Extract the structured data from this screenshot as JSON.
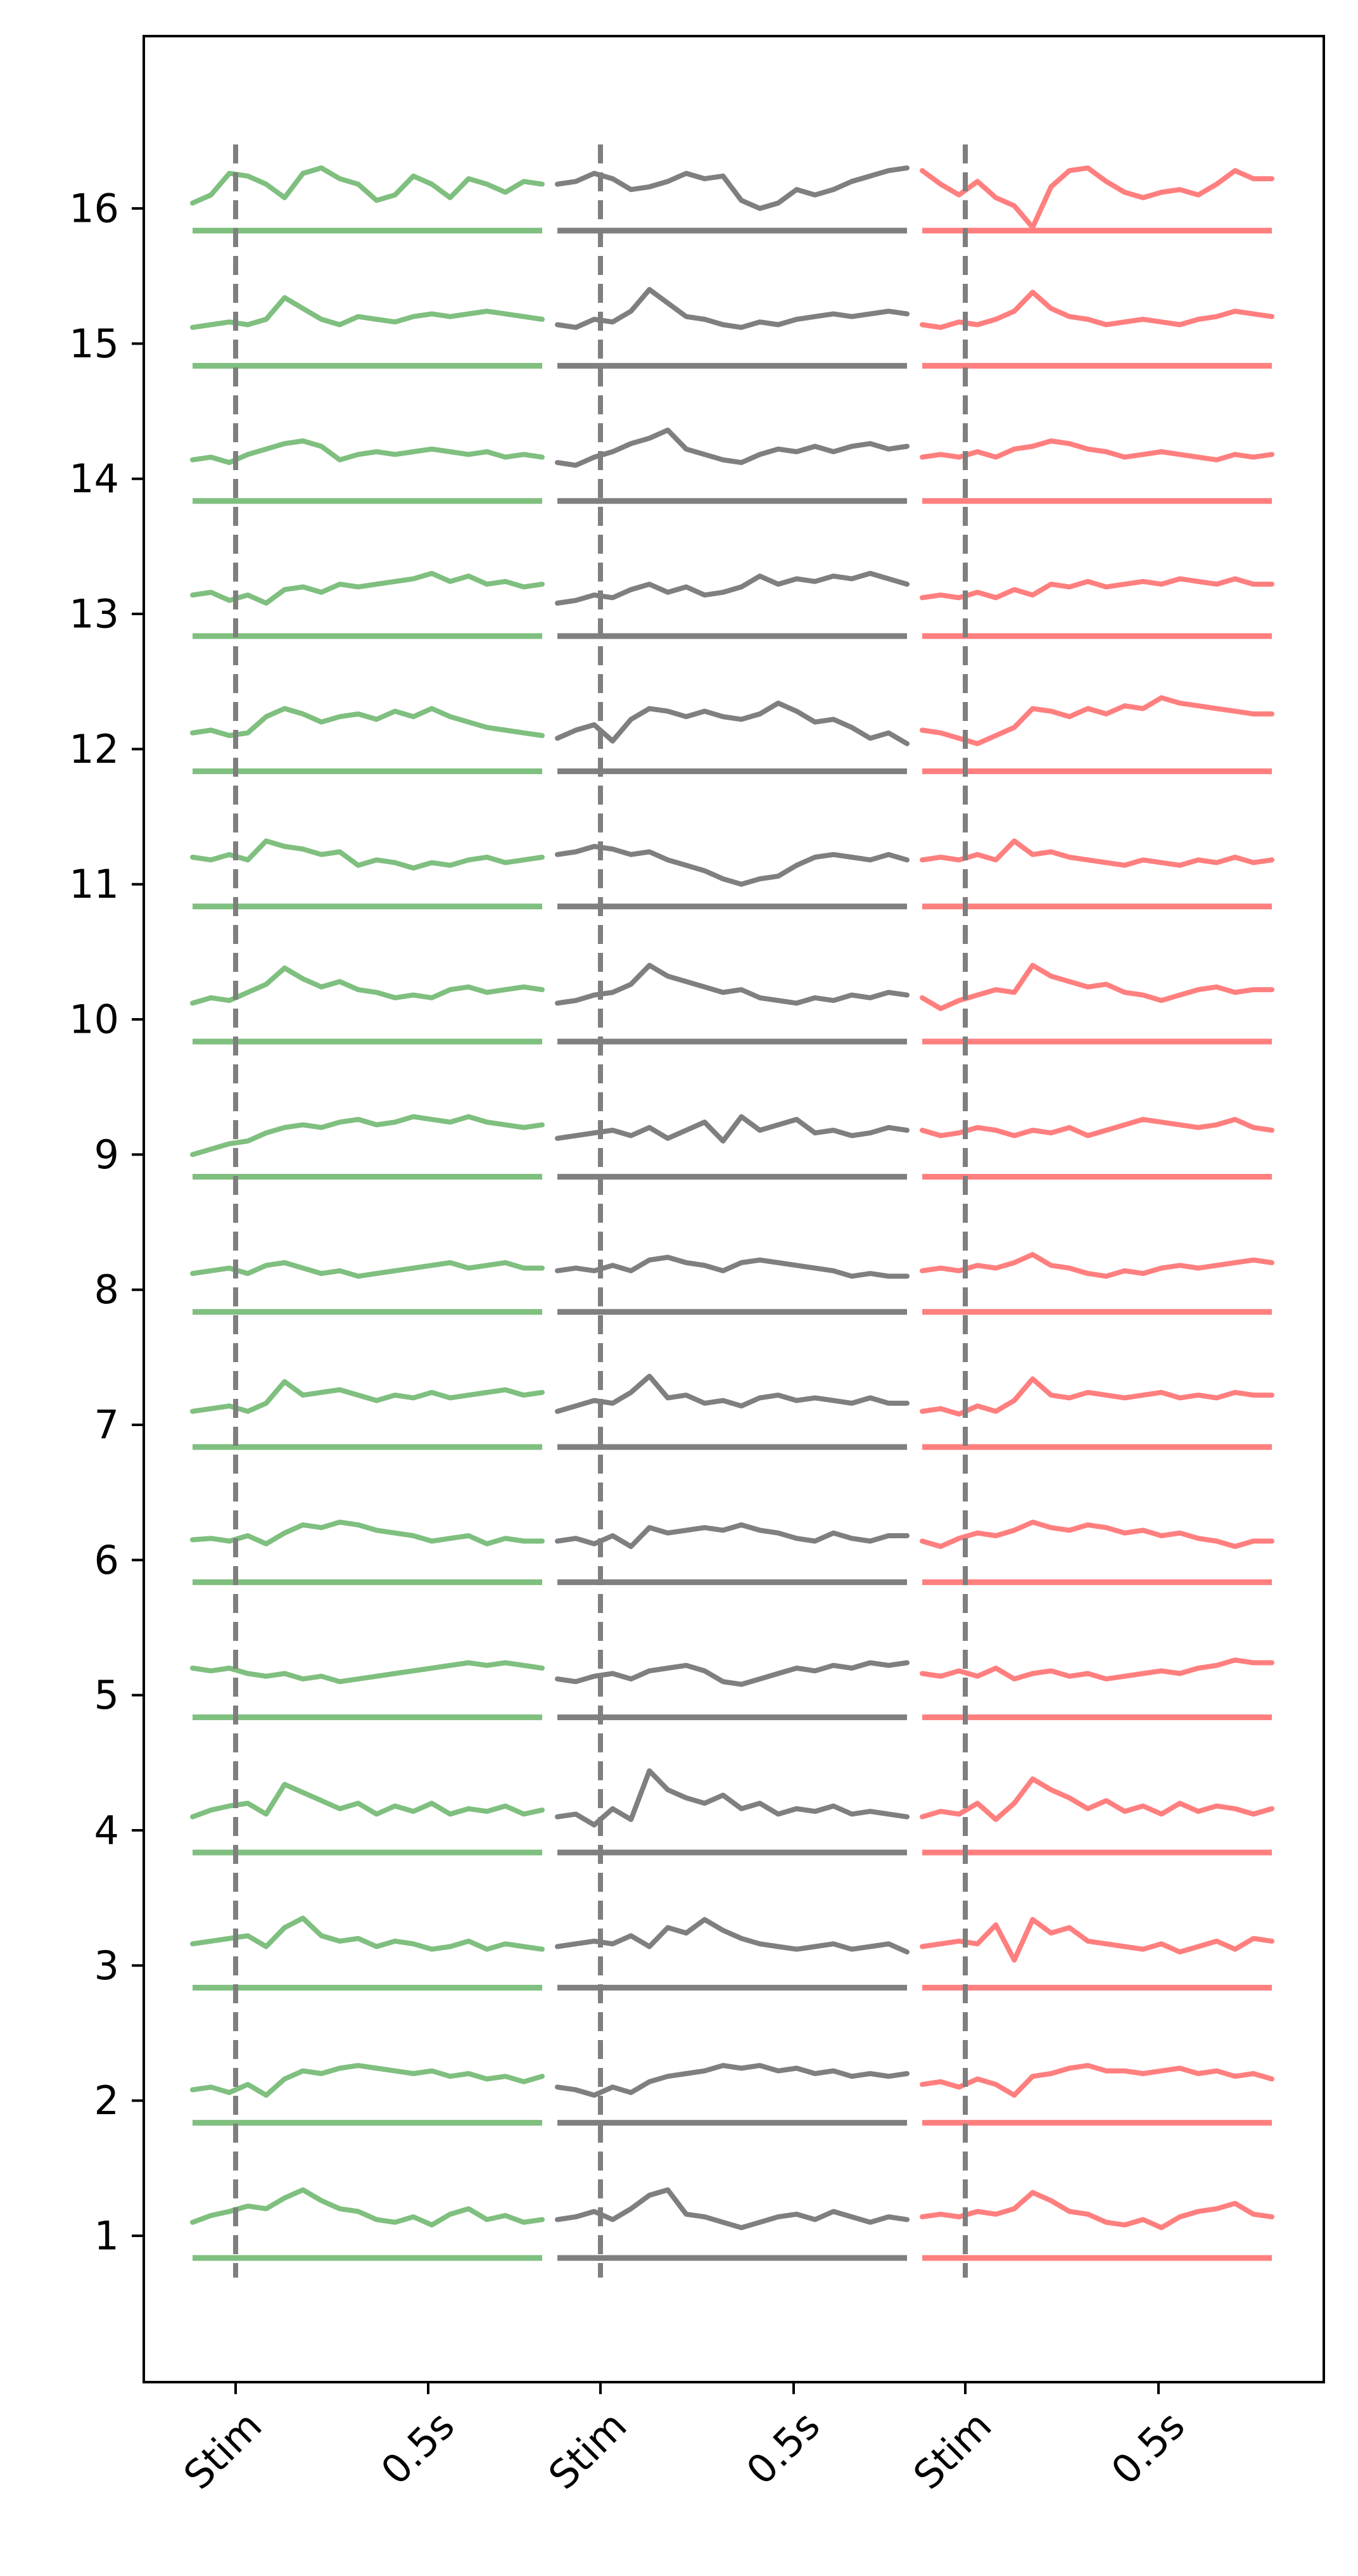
{
  "chart_data": {
    "type": "line",
    "title": "",
    "xlabel": "",
    "ylabel": "",
    "ylim": [
      0,
      17.5
    ],
    "grid": false,
    "legend": "none",
    "y_ticks": [
      "1",
      "2",
      "3",
      "4",
      "5",
      "6",
      "7",
      "8",
      "9",
      "10",
      "11",
      "12",
      "13",
      "14",
      "15",
      "16"
    ],
    "x_ticks": [
      "Stim",
      "0.5s",
      "Stim",
      "0.5s",
      "Stim",
      "0.5s"
    ],
    "columns": [
      {
        "color": "#7fbf7f",
        "traces": [
          [
            1.1,
            1.15,
            1.18,
            1.22,
            1.2,
            1.28,
            1.34,
            1.26,
            1.2,
            1.18,
            1.12,
            1.1,
            1.14,
            1.08,
            1.16,
            1.2,
            1.12,
            1.15,
            1.1,
            1.12
          ],
          [
            2.08,
            2.1,
            2.06,
            2.12,
            2.04,
            2.16,
            2.22,
            2.2,
            2.24,
            2.26,
            2.24,
            2.22,
            2.2,
            2.22,
            2.18,
            2.2,
            2.16,
            2.18,
            2.14,
            2.18
          ],
          [
            3.16,
            3.18,
            3.2,
            3.22,
            3.14,
            3.28,
            3.35,
            3.22,
            3.18,
            3.2,
            3.14,
            3.18,
            3.16,
            3.12,
            3.14,
            3.18,
            3.12,
            3.16,
            3.14,
            3.12
          ],
          [
            4.1,
            4.15,
            4.18,
            4.2,
            4.12,
            4.34,
            4.28,
            4.22,
            4.16,
            4.2,
            4.12,
            4.18,
            4.14,
            4.2,
            4.12,
            4.16,
            4.14,
            4.18,
            4.12,
            4.15
          ],
          [
            5.2,
            5.18,
            5.2,
            5.16,
            5.14,
            5.16,
            5.12,
            5.14,
            5.1,
            5.12,
            5.14,
            5.16,
            5.18,
            5.2,
            5.22,
            5.24,
            5.22,
            5.24,
            5.22,
            5.2
          ],
          [
            6.15,
            6.16,
            6.14,
            6.18,
            6.12,
            6.2,
            6.26,
            6.24,
            6.28,
            6.26,
            6.22,
            6.2,
            6.18,
            6.14,
            6.16,
            6.18,
            6.12,
            6.16,
            6.14,
            6.14
          ],
          [
            7.1,
            7.12,
            7.14,
            7.1,
            7.16,
            7.32,
            7.22,
            7.24,
            7.26,
            7.22,
            7.18,
            7.22,
            7.2,
            7.24,
            7.2,
            7.22,
            7.24,
            7.26,
            7.22,
            7.24
          ],
          [
            8.12,
            8.14,
            8.16,
            8.12,
            8.18,
            8.2,
            8.16,
            8.12,
            8.14,
            8.1,
            8.12,
            8.14,
            8.16,
            8.18,
            8.2,
            8.16,
            8.18,
            8.2,
            8.16,
            8.16
          ],
          [
            9.0,
            9.04,
            9.08,
            9.1,
            9.16,
            9.2,
            9.22,
            9.2,
            9.24,
            9.26,
            9.22,
            9.24,
            9.28,
            9.26,
            9.24,
            9.28,
            9.24,
            9.22,
            9.2,
            9.22
          ],
          [
            10.12,
            10.16,
            10.14,
            10.2,
            10.26,
            10.38,
            10.3,
            10.24,
            10.28,
            10.22,
            10.2,
            10.16,
            10.18,
            10.16,
            10.22,
            10.24,
            10.2,
            10.22,
            10.24,
            10.22
          ],
          [
            11.2,
            11.18,
            11.22,
            11.18,
            11.32,
            11.28,
            11.26,
            11.22,
            11.24,
            11.14,
            11.18,
            11.16,
            11.12,
            11.16,
            11.14,
            11.18,
            11.2,
            11.16,
            11.18,
            11.2
          ],
          [
            12.12,
            12.14,
            12.1,
            12.12,
            12.24,
            12.3,
            12.26,
            12.2,
            12.24,
            12.26,
            12.22,
            12.28,
            12.24,
            12.3,
            12.24,
            12.2,
            12.16,
            12.14,
            12.12,
            12.1
          ],
          [
            13.14,
            13.16,
            13.1,
            13.14,
            13.08,
            13.18,
            13.2,
            13.16,
            13.22,
            13.2,
            13.22,
            13.24,
            13.26,
            13.3,
            13.24,
            13.28,
            13.22,
            13.24,
            13.2,
            13.22
          ],
          [
            14.14,
            14.16,
            14.12,
            14.18,
            14.22,
            14.26,
            14.28,
            14.24,
            14.14,
            14.18,
            14.2,
            14.18,
            14.2,
            14.22,
            14.2,
            14.18,
            14.2,
            14.16,
            14.18,
            14.16
          ],
          [
            15.12,
            15.14,
            15.16,
            15.14,
            15.18,
            15.34,
            15.26,
            15.18,
            15.14,
            15.2,
            15.18,
            15.16,
            15.2,
            15.22,
            15.2,
            15.22,
            15.24,
            15.22,
            15.2,
            15.18
          ],
          [
            16.04,
            16.1,
            16.26,
            16.24,
            16.18,
            16.08,
            16.26,
            16.3,
            16.22,
            16.18,
            16.06,
            16.1,
            16.24,
            16.18,
            16.08,
            16.22,
            16.18,
            16.12,
            16.2,
            16.18
          ]
        ]
      },
      {
        "color": "#7f7f7f",
        "traces": [
          [
            1.12,
            1.14,
            1.18,
            1.12,
            1.2,
            1.3,
            1.34,
            1.16,
            1.14,
            1.1,
            1.06,
            1.1,
            1.14,
            1.16,
            1.12,
            1.18,
            1.14,
            1.1,
            1.14,
            1.12
          ],
          [
            2.1,
            2.08,
            2.04,
            2.1,
            2.06,
            2.14,
            2.18,
            2.2,
            2.22,
            2.26,
            2.24,
            2.26,
            2.22,
            2.24,
            2.2,
            2.22,
            2.18,
            2.2,
            2.18,
            2.2
          ],
          [
            3.14,
            3.16,
            3.18,
            3.16,
            3.22,
            3.14,
            3.28,
            3.24,
            3.34,
            3.26,
            3.2,
            3.16,
            3.14,
            3.12,
            3.14,
            3.16,
            3.12,
            3.14,
            3.16,
            3.1
          ],
          [
            4.1,
            4.12,
            4.04,
            4.16,
            4.08,
            4.44,
            4.3,
            4.24,
            4.2,
            4.26,
            4.16,
            4.2,
            4.12,
            4.16,
            4.14,
            4.18,
            4.12,
            4.14,
            4.12,
            4.1
          ],
          [
            5.12,
            5.1,
            5.14,
            5.16,
            5.12,
            5.18,
            5.2,
            5.22,
            5.18,
            5.1,
            5.08,
            5.12,
            5.16,
            5.2,
            5.18,
            5.22,
            5.2,
            5.24,
            5.22,
            5.24
          ],
          [
            6.14,
            6.16,
            6.12,
            6.18,
            6.1,
            6.24,
            6.2,
            6.22,
            6.24,
            6.22,
            6.26,
            6.22,
            6.2,
            6.16,
            6.14,
            6.2,
            6.16,
            6.14,
            6.18,
            6.18
          ],
          [
            7.1,
            7.14,
            7.18,
            7.16,
            7.24,
            7.36,
            7.2,
            7.22,
            7.16,
            7.18,
            7.14,
            7.2,
            7.22,
            7.18,
            7.2,
            7.18,
            7.16,
            7.2,
            7.16,
            7.16
          ],
          [
            8.14,
            8.16,
            8.14,
            8.18,
            8.14,
            8.22,
            8.24,
            8.2,
            8.18,
            8.14,
            8.2,
            8.22,
            8.2,
            8.18,
            8.16,
            8.14,
            8.1,
            8.12,
            8.1,
            8.1
          ],
          [
            9.12,
            9.14,
            9.16,
            9.18,
            9.14,
            9.2,
            9.12,
            9.18,
            9.24,
            9.1,
            9.28,
            9.18,
            9.22,
            9.26,
            9.16,
            9.18,
            9.14,
            9.16,
            9.2,
            9.18
          ],
          [
            10.12,
            10.14,
            10.18,
            10.2,
            10.26,
            10.4,
            10.32,
            10.28,
            10.24,
            10.2,
            10.22,
            10.16,
            10.14,
            10.12,
            10.16,
            10.14,
            10.18,
            10.16,
            10.2,
            10.18
          ],
          [
            11.22,
            11.24,
            11.28,
            11.26,
            11.22,
            11.24,
            11.18,
            11.14,
            11.1,
            11.04,
            11.0,
            11.04,
            11.06,
            11.14,
            11.2,
            11.22,
            11.2,
            11.18,
            11.22,
            11.18
          ],
          [
            12.08,
            12.14,
            12.18,
            12.06,
            12.22,
            12.3,
            12.28,
            12.24,
            12.28,
            12.24,
            12.22,
            12.26,
            12.34,
            12.28,
            12.2,
            12.22,
            12.16,
            12.08,
            12.12,
            12.04
          ],
          [
            13.08,
            13.1,
            13.14,
            13.12,
            13.18,
            13.22,
            13.16,
            13.2,
            13.14,
            13.16,
            13.2,
            13.28,
            13.22,
            13.26,
            13.24,
            13.28,
            13.26,
            13.3,
            13.26,
            13.22
          ],
          [
            14.12,
            14.1,
            14.16,
            14.2,
            14.26,
            14.3,
            14.36,
            14.22,
            14.18,
            14.14,
            14.12,
            14.18,
            14.22,
            14.2,
            14.24,
            14.2,
            14.24,
            14.26,
            14.22,
            14.24
          ],
          [
            15.14,
            15.12,
            15.18,
            15.16,
            15.24,
            15.4,
            15.3,
            15.2,
            15.18,
            15.14,
            15.12,
            15.16,
            15.14,
            15.18,
            15.2,
            15.22,
            15.2,
            15.22,
            15.24,
            15.22
          ],
          [
            16.18,
            16.2,
            16.26,
            16.22,
            16.14,
            16.16,
            16.2,
            16.26,
            16.22,
            16.24,
            16.06,
            16.0,
            16.04,
            16.14,
            16.1,
            16.14,
            16.2,
            16.24,
            16.28,
            16.3
          ]
        ]
      },
      {
        "color": "#ff7f7f",
        "traces": [
          [
            1.14,
            1.16,
            1.14,
            1.18,
            1.16,
            1.2,
            1.32,
            1.26,
            1.18,
            1.16,
            1.1,
            1.08,
            1.12,
            1.06,
            1.14,
            1.18,
            1.2,
            1.24,
            1.16,
            1.14
          ],
          [
            2.12,
            2.14,
            2.1,
            2.16,
            2.12,
            2.04,
            2.18,
            2.2,
            2.24,
            2.26,
            2.22,
            2.22,
            2.2,
            2.22,
            2.24,
            2.2,
            2.22,
            2.18,
            2.2,
            2.16
          ],
          [
            3.14,
            3.16,
            3.18,
            3.16,
            3.3,
            3.04,
            3.34,
            3.24,
            3.28,
            3.18,
            3.16,
            3.14,
            3.12,
            3.16,
            3.1,
            3.14,
            3.18,
            3.12,
            3.2,
            3.18
          ],
          [
            4.1,
            4.14,
            4.12,
            4.2,
            4.08,
            4.2,
            4.38,
            4.3,
            4.24,
            4.16,
            4.22,
            4.14,
            4.18,
            4.12,
            4.2,
            4.14,
            4.18,
            4.16,
            4.12,
            4.16
          ],
          [
            5.16,
            5.14,
            5.18,
            5.14,
            5.2,
            5.12,
            5.16,
            5.18,
            5.14,
            5.16,
            5.12,
            5.14,
            5.16,
            5.18,
            5.16,
            5.2,
            5.22,
            5.26,
            5.24,
            5.24
          ],
          [
            6.14,
            6.1,
            6.16,
            6.2,
            6.18,
            6.22,
            6.28,
            6.24,
            6.22,
            6.26,
            6.24,
            6.2,
            6.22,
            6.18,
            6.2,
            6.16,
            6.14,
            6.1,
            6.14,
            6.14
          ],
          [
            7.1,
            7.12,
            7.08,
            7.14,
            7.1,
            7.18,
            7.34,
            7.22,
            7.2,
            7.24,
            7.22,
            7.2,
            7.22,
            7.24,
            7.2,
            7.22,
            7.2,
            7.24,
            7.22,
            7.22
          ],
          [
            8.14,
            8.16,
            8.14,
            8.18,
            8.16,
            8.2,
            8.26,
            8.18,
            8.16,
            8.12,
            8.1,
            8.14,
            8.12,
            8.16,
            8.18,
            8.16,
            8.18,
            8.2,
            8.22,
            8.2
          ],
          [
            9.18,
            9.14,
            9.16,
            9.2,
            9.18,
            9.14,
            9.18,
            9.16,
            9.2,
            9.14,
            9.18,
            9.22,
            9.26,
            9.24,
            9.22,
            9.2,
            9.22,
            9.26,
            9.2,
            9.18
          ],
          [
            10.16,
            10.08,
            10.14,
            10.18,
            10.22,
            10.2,
            10.4,
            10.32,
            10.28,
            10.24,
            10.26,
            10.2,
            10.18,
            10.14,
            10.18,
            10.22,
            10.24,
            10.2,
            10.22,
            10.22
          ],
          [
            11.18,
            11.2,
            11.18,
            11.22,
            11.18,
            11.32,
            11.22,
            11.24,
            11.2,
            11.18,
            11.16,
            11.14,
            11.18,
            11.16,
            11.14,
            11.18,
            11.16,
            11.2,
            11.16,
            11.18
          ],
          [
            12.14,
            12.12,
            12.08,
            12.04,
            12.1,
            12.16,
            12.3,
            12.28,
            12.24,
            12.3,
            12.26,
            12.32,
            12.3,
            12.38,
            12.34,
            12.32,
            12.3,
            12.28,
            12.26,
            12.26
          ],
          [
            13.12,
            13.14,
            13.12,
            13.16,
            13.12,
            13.18,
            13.14,
            13.22,
            13.2,
            13.24,
            13.2,
            13.22,
            13.24,
            13.22,
            13.26,
            13.24,
            13.22,
            13.26,
            13.22,
            13.22
          ],
          [
            14.16,
            14.18,
            14.16,
            14.2,
            14.16,
            14.22,
            14.24,
            14.28,
            14.26,
            14.22,
            14.2,
            14.16,
            14.18,
            14.2,
            14.18,
            14.16,
            14.14,
            14.18,
            14.16,
            14.18
          ],
          [
            15.14,
            15.12,
            15.16,
            15.14,
            15.18,
            15.24,
            15.38,
            15.26,
            15.2,
            15.18,
            15.14,
            15.16,
            15.18,
            15.16,
            15.14,
            15.18,
            15.2,
            15.24,
            15.22,
            15.2
          ],
          [
            16.28,
            16.18,
            16.1,
            16.2,
            16.08,
            16.02,
            15.86,
            16.16,
            16.28,
            16.3,
            16.2,
            16.12,
            16.08,
            16.12,
            16.14,
            16.1,
            16.18,
            16.28,
            16.22,
            16.22
          ]
        ]
      }
    ]
  }
}
